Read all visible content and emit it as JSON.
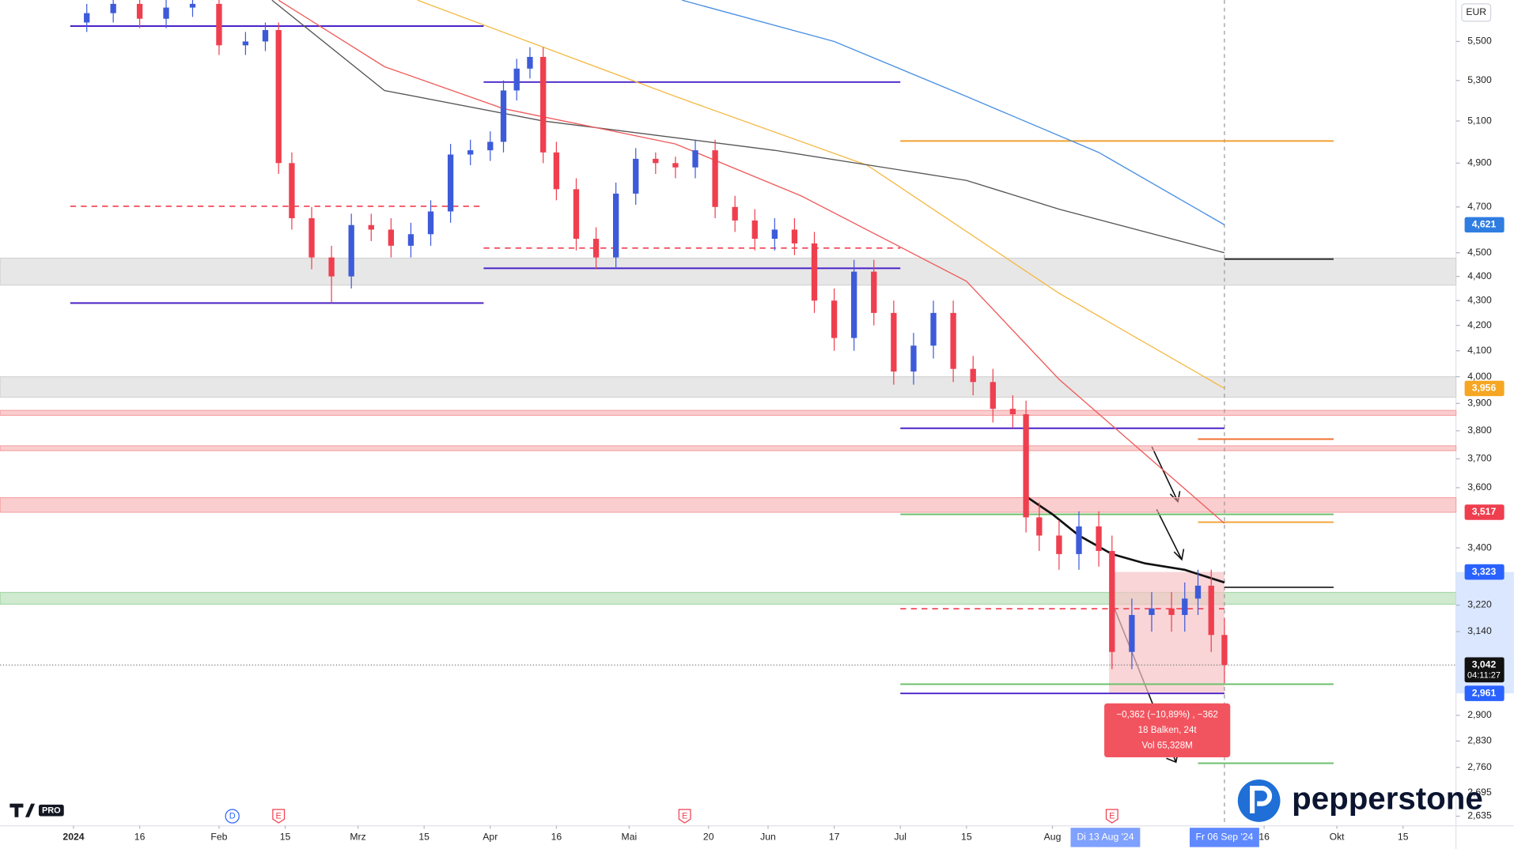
{
  "chart_data": {
    "type": "candlestick",
    "currency": "EUR",
    "log_scale": true,
    "grid": false,
    "xlim": [
      -11.1,
      209
    ],
    "ylim": [
      2611,
      5721
    ],
    "xticks": [
      {
        "value": 0,
        "label": "2024"
      },
      {
        "value": 10,
        "label": "16"
      },
      {
        "value": 22,
        "label": "Feb"
      },
      {
        "value": 32,
        "label": "15"
      },
      {
        "value": 43,
        "label": "Mrz"
      },
      {
        "value": 53,
        "label": "15"
      },
      {
        "value": 63,
        "label": "Apr"
      },
      {
        "value": 73,
        "label": "16"
      },
      {
        "value": 84,
        "label": "Mai"
      },
      {
        "value": 96,
        "label": "20"
      },
      {
        "value": 105,
        "label": "Jun"
      },
      {
        "value": 115,
        "label": "17"
      },
      {
        "value": 125,
        "label": "Jul"
      },
      {
        "value": 135,
        "label": "15"
      },
      {
        "value": 148,
        "label": "Aug"
      },
      {
        "value": 180,
        "label": "16"
      },
      {
        "value": 191,
        "label": "Okt"
      },
      {
        "value": 201,
        "label": "15"
      }
    ],
    "yticks": [
      {
        "value": 5500,
        "label": "5,500"
      },
      {
        "value": 5300,
        "label": "5,300"
      },
      {
        "value": 5100,
        "label": "5,100"
      },
      {
        "value": 4900,
        "label": "4,900"
      },
      {
        "value": 4700,
        "label": "4,700"
      },
      {
        "value": 4500,
        "label": "4,500"
      },
      {
        "value": 4400,
        "label": "4,400"
      },
      {
        "value": 4300,
        "label": "4,300"
      },
      {
        "value": 4200,
        "label": "4,200"
      },
      {
        "value": 4100,
        "label": "4,100"
      },
      {
        "value": 4000,
        "label": "4,000"
      },
      {
        "value": 3900,
        "label": "3,900"
      },
      {
        "value": 3800,
        "label": "3,800"
      },
      {
        "value": 3700,
        "label": "3,700"
      },
      {
        "value": 3600,
        "label": "3,600"
      },
      {
        "value": 3400,
        "label": "3,400"
      },
      {
        "value": 3220,
        "label": "3,220"
      },
      {
        "value": 3140,
        "label": "3,140"
      },
      {
        "value": 2900,
        "label": "2,900"
      },
      {
        "value": 2830,
        "label": "2,830"
      },
      {
        "value": 2760,
        "label": "2,760"
      },
      {
        "value": 2695,
        "label": "2,695"
      },
      {
        "value": 2635,
        "label": "2,635"
      }
    ],
    "up_color": "#3d5bd9",
    "down_color": "#ef3f4f",
    "x": [
      2,
      6,
      10,
      14,
      18,
      22,
      26,
      29,
      31,
      33,
      36,
      39,
      42,
      45,
      48,
      51,
      54,
      57,
      60,
      63,
      65,
      67,
      69,
      71,
      73,
      76,
      79,
      82,
      85,
      88,
      91,
      94,
      97,
      100,
      103,
      106,
      109,
      112,
      115,
      118,
      121,
      124,
      127,
      130,
      133,
      136,
      139,
      142,
      144,
      146,
      149,
      152,
      155,
      157,
      160,
      163,
      166,
      168,
      170,
      172,
      174
    ],
    "open": [
      5600,
      5650,
      5700,
      5620,
      5680,
      5700,
      5480,
      5500,
      5560,
      4900,
      4650,
      4480,
      4400,
      4620,
      4600,
      4530,
      4580,
      4680,
      4940,
      4960,
      5000,
      5250,
      5360,
      5420,
      4950,
      4780,
      4560,
      4480,
      4760,
      4920,
      4900,
      4880,
      4960,
      4700,
      4640,
      4560,
      4600,
      4540,
      4300,
      4150,
      4420,
      4250,
      4020,
      4120,
      4250,
      4030,
      3980,
      3880,
      3860,
      3500,
      3440,
      3380,
      3470,
      3390,
      3080,
      3190,
      3210,
      3190,
      3240,
      3280,
      3130
    ],
    "high": [
      5700,
      5750,
      5750,
      5730,
      5750,
      5750,
      5550,
      5600,
      5600,
      4950,
      4700,
      4530,
      4670,
      4670,
      4650,
      4630,
      4730,
      4990,
      5010,
      5050,
      5300,
      5410,
      5470,
      5470,
      5000,
      4830,
      4610,
      4810,
      4970,
      4950,
      4930,
      5010,
      5010,
      4750,
      4690,
      4650,
      4650,
      4590,
      4350,
      4470,
      4470,
      4300,
      4170,
      4300,
      4300,
      4080,
      4030,
      3930,
      3910,
      3550,
      3490,
      3520,
      3520,
      3440,
      3240,
      3260,
      3260,
      3290,
      3330,
      3330,
      3180
    ],
    "low": [
      5550,
      5600,
      5570,
      5570,
      5630,
      5430,
      5430,
      5450,
      4850,
      4600,
      4430,
      4290,
      4350,
      4550,
      4480,
      4480,
      4530,
      4630,
      4890,
      4910,
      4950,
      5200,
      5310,
      4900,
      4730,
      4510,
      4430,
      4430,
      4710,
      4850,
      4830,
      4830,
      4650,
      4590,
      4510,
      4510,
      4490,
      4250,
      4100,
      4100,
      4200,
      3970,
      3970,
      4070,
      3980,
      3930,
      3830,
      3810,
      3450,
      3390,
      3330,
      3330,
      3340,
      3030,
      3030,
      3140,
      3140,
      3140,
      3190,
      3080,
      2990
    ],
    "close": [
      5650,
      5700,
      5620,
      5680,
      5700,
      5480,
      5500,
      5560,
      4900,
      4650,
      4480,
      4400,
      4620,
      4600,
      4530,
      4580,
      4680,
      4940,
      4960,
      5000,
      5250,
      5360,
      5420,
      4950,
      4780,
      4560,
      4480,
      4760,
      4920,
      4900,
      4880,
      4960,
      4700,
      4640,
      4560,
      4600,
      4540,
      4300,
      4150,
      4420,
      4250,
      4020,
      4120,
      4250,
      4030,
      3980,
      3880,
      3860,
      3500,
      3440,
      3380,
      3470,
      3390,
      3080,
      3190,
      3210,
      3190,
      3240,
      3280,
      3130,
      3042
    ],
    "lines": [
      {
        "color": "#4a90e2",
        "x": [
          92,
          115,
          135,
          155,
          174
        ],
        "values": [
          5720,
          5500,
          5220,
          4950,
          4621
        ]
      },
      {
        "color": "#f5b945",
        "x": [
          52,
          91,
          120,
          149,
          174
        ],
        "values": [
          5720,
          5220,
          4890,
          4330,
          3956
        ]
      },
      {
        "color": "#555555",
        "x": [
          30,
          47,
          71,
          106,
          135,
          149,
          174
        ],
        "values": [
          5720,
          5250,
          5100,
          4960,
          4820,
          4690,
          4500
        ]
      },
      {
        "color": "#ef5b5b",
        "x": [
          31,
          47,
          65,
          91,
          110,
          135,
          149,
          174
        ],
        "values": [
          5720,
          5370,
          5160,
          4990,
          4750,
          4380,
          3990,
          3480
        ]
      },
      {
        "color": "#111111",
        "x": [
          144,
          148,
          152,
          157,
          162,
          168,
          174
        ],
        "values": [
          3570,
          3510,
          3440,
          3380,
          3350,
          3330,
          3290
        ]
      }
    ],
    "zones": [
      {
        "from": 4364,
        "to": 4477,
        "color": "#d4d4d4"
      },
      {
        "from": 3923,
        "to": 4000,
        "color": "#d4d4d4"
      },
      {
        "from": 3856,
        "to": 3874,
        "color": "#f5a5a8"
      },
      {
        "from": 3729,
        "to": 3746,
        "color": "#f5a5a8"
      },
      {
        "from": 3517,
        "to": 3566,
        "color": "#f5a5a8"
      },
      {
        "from": 3223,
        "to": 3259,
        "color": "#a8d8a8"
      }
    ],
    "levels": [
      {
        "value": 5581,
        "from": -0.5,
        "to": 62,
        "color": "#4a22c8",
        "dash": false
      },
      {
        "value": 5292,
        "from": 62,
        "to": 125,
        "color": "#4a22c8",
        "dash": false
      },
      {
        "value": 4434,
        "from": 62,
        "to": 125,
        "color": "#4a22c8",
        "dash": false
      },
      {
        "value": 4290,
        "from": -0.5,
        "to": 62,
        "color": "#4a22c8",
        "dash": false
      },
      {
        "value": 3809,
        "from": 125,
        "to": 174,
        "color": "#4a22c8",
        "dash": false
      },
      {
        "value": 2961,
        "from": 125,
        "to": 174,
        "color": "#4a22c8",
        "dash": false
      },
      {
        "value": 4703,
        "from": -0.5,
        "to": 62,
        "color": "#ef3f4f",
        "dash": true
      },
      {
        "value": 4520,
        "from": 62,
        "to": 125,
        "color": "#ef3f4f",
        "dash": true
      },
      {
        "value": 3209,
        "from": 125,
        "to": 174,
        "color": "#ef3f4f",
        "dash": true
      },
      {
        "value": 5004,
        "from": 125,
        "to": 190.5,
        "color": "#f0a030",
        "dash": false
      },
      {
        "value": 3770,
        "from": 170,
        "to": 190.5,
        "color": "#f07030",
        "dash": false
      },
      {
        "value": 3484,
        "from": 170,
        "to": 190.5,
        "color": "#f0a030",
        "dash": false
      },
      {
        "value": 3510,
        "from": 125,
        "to": 190.5,
        "color": "#6cbf6c",
        "dash": false
      },
      {
        "value": 2987,
        "from": 125,
        "to": 190.5,
        "color": "#6cbf6c",
        "dash": false
      },
      {
        "value": 2771,
        "from": 170,
        "to": 190.5,
        "color": "#6cbf6c",
        "dash": false
      },
      {
        "value": 4473,
        "from": 174,
        "to": 190.5,
        "color": "#333333",
        "dash": false
      },
      {
        "value": 3275,
        "from": 174,
        "to": 190.5,
        "color": "#333333",
        "dash": false
      }
    ],
    "price_labels": [
      {
        "value": 4621,
        "label": "4,621",
        "color": "#2f7de1"
      },
      {
        "value": 3956,
        "label": "3,956",
        "color": "#f5a623"
      },
      {
        "value": 3517,
        "label": "3,517",
        "color": "#ef3f4f"
      },
      {
        "value": 3323,
        "label": "3,323",
        "color": "#2962ff"
      },
      {
        "value": 3042,
        "label": "3,042",
        "color": "#111111"
      },
      {
        "value": 2961,
        "label": "2,961",
        "color": "#2962ff"
      }
    ],
    "countdown": "04:11:27",
    "cursor_x": 174,
    "date_labels": [
      {
        "value": 156,
        "label": "Di 13 Aug '24"
      },
      {
        "value": 174,
        "label": "Fr 06 Sep '24"
      }
    ],
    "measure": {
      "from": 157,
      "to": 174,
      "top": 3323,
      "bottom": 2961,
      "text": [
        "−0,362 (−10,89%) , −362",
        "18 Balken, 24t",
        "Vol 65,328M"
      ]
    },
    "events": [
      {
        "x": 24,
        "label": "D"
      },
      {
        "x": 31,
        "label": "E"
      },
      {
        "x": 92.4,
        "label": "E"
      },
      {
        "x": 157,
        "label": "E"
      }
    ],
    "badge": "PRO",
    "watermark": "pepperstone"
  }
}
